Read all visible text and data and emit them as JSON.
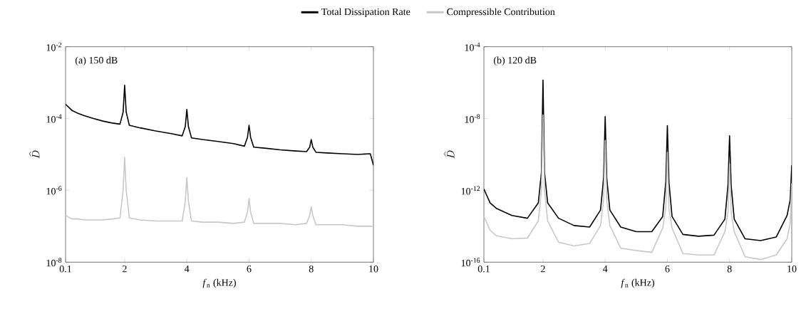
{
  "chart_data": [
    {
      "type": "line",
      "xlabel": "*f*$_{n}$ (kHz)",
      "ylabel": "\\widehat{D}",
      "log": "y",
      "legend": "top",
      "line_style": "solid",
      "marker": "none",
      "annotations": [
        "(a) 150 dB"
      ],
      "xlim": [
        0.1,
        10
      ],
      "xticks": [
        0.1,
        2,
        4,
        6,
        8,
        10
      ],
      "ylim": [
        1e-08,
        0.01
      ],
      "yticks": [
        {
          "value": 1e-08,
          "label": "10$^{-8}$"
        },
        {
          "value": 1e-06,
          "label": "10$^{-6}$"
        },
        {
          "value": 0.0001,
          "label": "10$^{-4}$"
        },
        {
          "value": 0.01,
          "label": "10$^{-2}$"
        }
      ],
      "x": [
        0.1,
        0.3,
        0.5,
        0.7,
        1.0,
        1.3,
        1.6,
        1.85,
        1.95,
        2.0,
        2.05,
        2.15,
        2.5,
        3.0,
        3.5,
        3.85,
        3.95,
        4.0,
        4.05,
        4.15,
        4.5,
        5.0,
        5.5,
        5.85,
        5.95,
        6.0,
        6.05,
        6.15,
        6.5,
        7.0,
        7.5,
        7.85,
        7.95,
        8.0,
        8.05,
        8.15,
        8.5,
        9.0,
        9.5,
        9.9,
        10.0
      ],
      "series": [
        {
          "name": "Total Dissipation Rate",
          "color": "#000000",
          "values": [
            0.00025,
            0.00017,
            0.00014,
            0.00012,
            0.0001,
            8.5e-05,
            7.5e-05,
            7e-05,
            0.00015,
            0.00085,
            0.00015,
            6.5e-05,
            5.5e-05,
            4.5e-05,
            3.8e-05,
            3.3e-05,
            6e-05,
            0.00018,
            6e-05,
            2.9e-05,
            2.6e-05,
            2.3e-05,
            2e-05,
            1.7e-05,
            3e-05,
            6.5e-05,
            3e-05,
            1.6e-05,
            1.5e-05,
            1.35e-05,
            1.25e-05,
            1.2e-05,
            1.6e-05,
            2.6e-05,
            1.6e-05,
            1.15e-05,
            1.1e-05,
            1.05e-05,
            1e-05,
            1.05e-05,
            5e-06
          ]
        },
        {
          "name": "Compressible Contribution",
          "color": "#c8c8c8",
          "values": [
            2e-07,
            1.6e-07,
            1.6e-07,
            1.5e-07,
            1.5e-07,
            1.5e-07,
            1.6e-07,
            1.7e-07,
            1e-06,
            8.3e-06,
            1e-06,
            1.7e-07,
            1.5e-07,
            1.4e-07,
            1.4e-07,
            1.4e-07,
            5e-07,
            2.3e-06,
            5e-07,
            1.4e-07,
            1.3e-07,
            1.3e-07,
            1.2e-07,
            1.3e-07,
            2.5e-07,
            5.9e-07,
            2.5e-07,
            1.2e-07,
            1.2e-07,
            1.2e-07,
            1.1e-07,
            1.2e-07,
            2e-07,
            3.5e-07,
            2e-07,
            1.1e-07,
            1.1e-07,
            1.1e-07,
            1e-07,
            1e-07,
            1e-07
          ]
        }
      ]
    },
    {
      "type": "line",
      "xlabel": "*f*$_{n}$ (kHz)",
      "ylabel": "\\widehat{D}",
      "log": "y",
      "line_style": "solid",
      "marker": "none",
      "annotations": [
        "(b) 120 dB"
      ],
      "xlim": [
        0.1,
        10
      ],
      "xticks": [
        0.1,
        2,
        4,
        6,
        8,
        10
      ],
      "ylim": [
        1e-16,
        0.0001
      ],
      "yticks": [
        {
          "value": 1e-16,
          "label": "10$^{-16}$"
        },
        {
          "value": 1e-12,
          "label": "10$^{-12}$"
        },
        {
          "value": 1e-08,
          "label": "10$^{-8}$"
        },
        {
          "value": 0.0001,
          "label": "10$^{-4}$"
        }
      ],
      "x": [
        0.1,
        0.3,
        0.5,
        1.0,
        1.5,
        1.85,
        1.95,
        2.0,
        2.05,
        2.15,
        2.5,
        3.0,
        3.5,
        3.85,
        3.95,
        4.0,
        4.05,
        4.15,
        4.5,
        5.0,
        5.5,
        5.85,
        5.95,
        6.0,
        6.05,
        6.15,
        6.5,
        7.0,
        7.5,
        7.85,
        7.95,
        8.0,
        8.05,
        8.15,
        8.5,
        9.0,
        9.5,
        9.85,
        9.95,
        10.0
      ],
      "series": [
        {
          "color": "#000000",
          "values": [
            1.2e-12,
            2e-13,
            1e-13,
            4e-14,
            2.8e-14,
            2e-13,
            1e-11,
            1.4e-06,
            1e-11,
            2e-13,
            2.8e-14,
            1.1e-14,
            9e-15,
            8e-14,
            5e-12,
            1.3e-08,
            5e-12,
            8e-14,
            9e-15,
            5e-15,
            5e-15,
            3.5e-14,
            3e-12,
            4e-09,
            3e-12,
            3.5e-14,
            3.5e-15,
            2.8e-15,
            3.2e-15,
            2.5e-14,
            2e-12,
            1.1e-09,
            2e-12,
            2.5e-14,
            2e-15,
            1.6e-15,
            2.5e-15,
            4e-14,
            3e-13,
            2.5e-11
          ]
        },
        {
          "color": "#c8c8c8",
          "values": [
            3.5e-14,
            6e-15,
            3e-15,
            2e-15,
            2.2e-15,
            2e-14,
            1e-12,
            1.6e-08,
            1e-12,
            2e-14,
            1.3e-15,
            8e-16,
            1.1e-15,
            1.1e-14,
            3e-13,
            6e-10,
            3e-13,
            1.1e-14,
            6e-16,
            4.5e-16,
            3.5e-16,
            8e-15,
            1e-13,
            1.3e-10,
            1e-13,
            8e-15,
            3e-16,
            2.5e-16,
            2.5e-16,
            5e-15,
            6e-14,
            3e-11,
            6e-14,
            5e-15,
            2e-16,
            1.4e-16,
            2.5e-16,
            2e-15,
            1.6e-14,
            2.5e-12
          ]
        }
      ]
    }
  ]
}
